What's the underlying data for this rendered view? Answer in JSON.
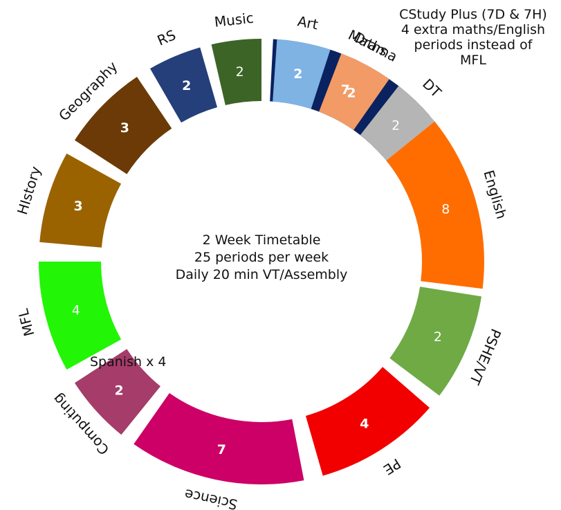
{
  "center": {
    "line1": "2 Week Timetable",
    "line2": "25 periods per week",
    "line3": "Daily 20 min VT/Assembly"
  },
  "notes": {
    "cstudy": [
      "CStudy Plus (7D & 7H)",
      "4 extra maths/English",
      "periods instead of",
      "MFL"
    ],
    "spanish": "Spanish x 4"
  },
  "segments": [
    {
      "subject": "Maths",
      "periods": "7",
      "color": "#0b2260",
      "value_color": "#ffffff"
    },
    {
      "subject": "English",
      "periods": "8",
      "color": "#ff6d00",
      "value_color": "#ffffff"
    },
    {
      "subject": "PSHE/VT",
      "periods": "2",
      "color": "#6faa45",
      "value_color": "#ffffff"
    },
    {
      "subject": "PE",
      "periods": "4",
      "color": "#f20000",
      "value_color": "#ffffff"
    },
    {
      "subject": "Science",
      "periods": "7",
      "color": "#cc0066",
      "value_color": "#ffffff"
    },
    {
      "subject": "Computing",
      "periods": "2",
      "color": "#a53c6a",
      "value_color": "#ffffff"
    },
    {
      "subject": "MFL",
      "periods": "4",
      "color": "#22f505",
      "value_color": "#ffffff"
    },
    {
      "subject": "HIstory",
      "periods": "3",
      "color": "#9a6300",
      "value_color": "#ffffff"
    },
    {
      "subject": "Geography",
      "periods": "3",
      "color": "#6b3a06",
      "value_color": "#ffffff"
    },
    {
      "subject": "RS",
      "periods": "2",
      "color": "#243f7a",
      "value_color": "#ffffff"
    },
    {
      "subject": "Music",
      "periods": "2",
      "color": "#3d6427",
      "value_color": "#ffffff"
    },
    {
      "subject": "Art",
      "periods": "2",
      "color": "#7eb3e4",
      "value_color": "#ffffff"
    },
    {
      "subject": "Drama",
      "periods": "2",
      "color": "#f29b66",
      "value_color": "#ffffff"
    },
    {
      "subject": "DT",
      "periods": "2",
      "color": "#b5b5b5",
      "value_color": "#ffffff"
    }
  ]
}
